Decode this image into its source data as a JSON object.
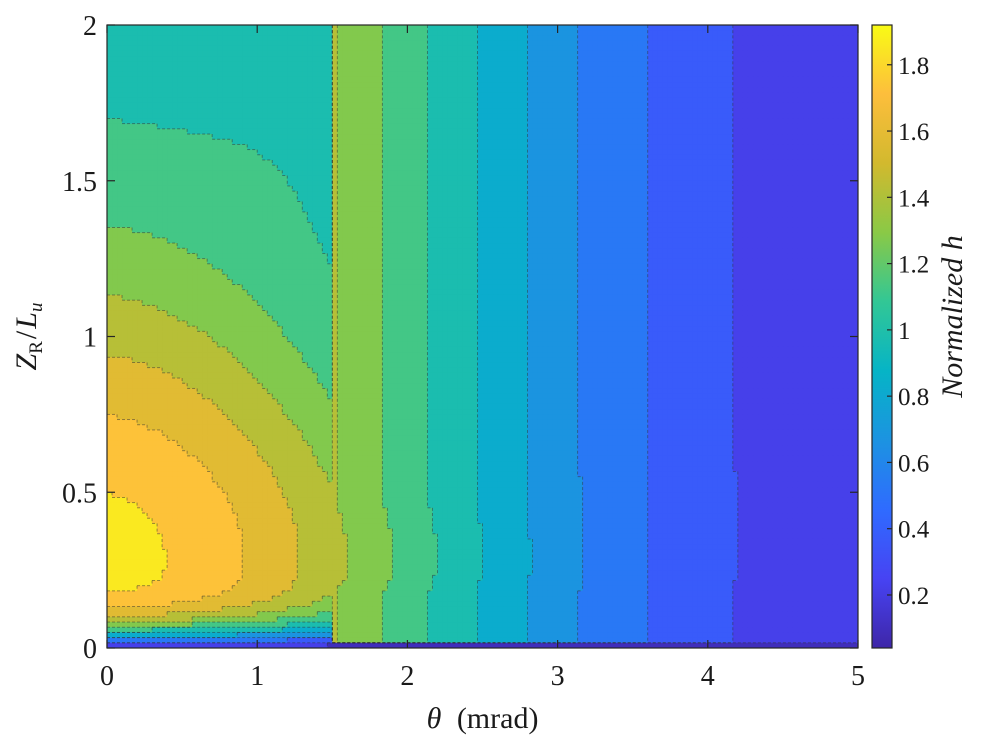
{
  "chart_data": {
    "type": "heatmap",
    "plot_style": "filled contour (contourf) with dashed contour lines",
    "colormap": "parula",
    "x": {
      "label_symbol": "θ",
      "label_unit": "(mrad)",
      "lim": [
        0,
        5
      ],
      "ticks": [
        0,
        1,
        2,
        3,
        4,
        5
      ],
      "tick_labels": [
        "0",
        "1",
        "2",
        "3",
        "4",
        "5"
      ]
    },
    "y": {
      "label_main": "Z",
      "label_sub_a": "R",
      "label_slash": "/",
      "label_main_b": "L",
      "label_sub_b": "u",
      "lim": [
        0,
        2
      ],
      "ticks": [
        0,
        0.5,
        1,
        1.5,
        2
      ],
      "tick_labels": [
        "0",
        "0.5",
        "1",
        "1.5",
        "2"
      ]
    },
    "colorbar": {
      "label": "Normalized h",
      "lim": [
        0.04,
        1.92
      ],
      "ticks": [
        0.2,
        0.4,
        0.6,
        0.8,
        1.0,
        1.2,
        1.4,
        1.6,
        1.8
      ],
      "tick_labels": [
        "0.2",
        "0.4",
        "0.6",
        "0.8",
        "1",
        "1.2",
        "1.4",
        "1.6",
        "1.8"
      ],
      "colors": [
        "#3e26a8",
        "#4743f3",
        "#2f6bff",
        "#1c93e1",
        "#06b4c6",
        "#32c795",
        "#8ac946",
        "#d2b92e",
        "#fdbe3c",
        "#f9fb15"
      ]
    },
    "contour_levels": [
      0.15,
      0.3,
      0.45,
      0.6,
      0.75,
      0.9,
      1.05,
      1.2,
      1.35,
      1.5,
      1.65,
      1.8
    ],
    "peak": {
      "theta_mrad": 0.3,
      "zr_over_lu": 0.3,
      "value": 1.9
    },
    "grid": false,
    "legend": "none"
  }
}
